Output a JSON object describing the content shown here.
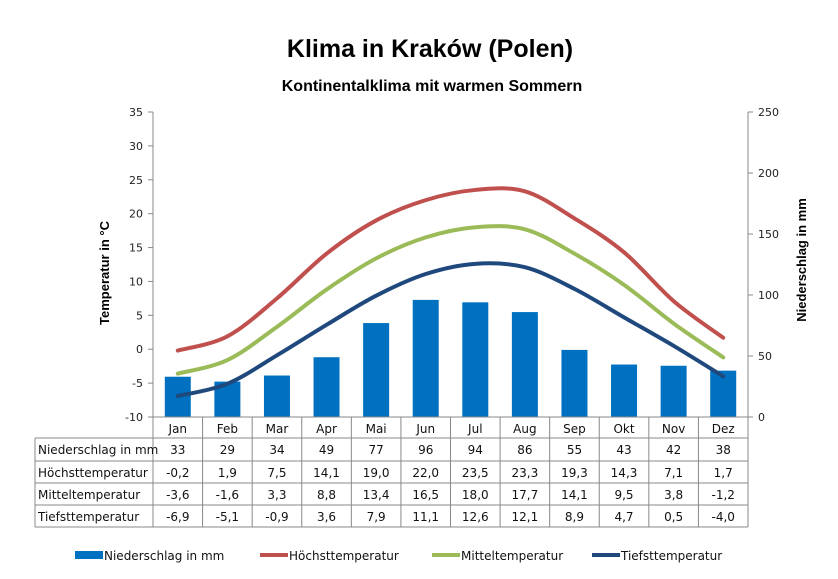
{
  "chart_data": {
    "type": "bar+line",
    "title": "Klima in Kraków (Polen)",
    "subtitle": "Kontinentalklima mit warmen Sommern",
    "ylabel_left": "Temperatur  in  °C",
    "ylabel_right": "Niederschlag  in  mm",
    "ylim_left": [
      -10,
      35
    ],
    "ylim_right": [
      0,
      250
    ],
    "yticks_left": [
      "35",
      "30",
      "25",
      "20",
      "15",
      "10",
      "5",
      "0",
      "-5",
      "-10"
    ],
    "yticks_right": [
      "250",
      "200",
      "150",
      "100",
      "50",
      "0"
    ],
    "categories": [
      "Jan",
      "Feb",
      "Mar",
      "Apr",
      "Mai",
      "Jun",
      "Jul",
      "Aug",
      "Sep",
      "Okt",
      "Nov",
      "Dez"
    ],
    "series": [
      {
        "name": "Niederschlag in mm",
        "type": "bar",
        "axis": "right",
        "color": "#0070C0",
        "values": [
          33,
          29,
          34,
          49,
          77,
          96,
          94,
          86,
          55,
          43,
          42,
          38
        ]
      },
      {
        "name": "Höchsttemperatur",
        "type": "line",
        "axis": "left",
        "color": "#C0504D",
        "values": [
          -0.2,
          1.9,
          7.5,
          14.1,
          19.0,
          22.0,
          23.5,
          23.3,
          19.3,
          14.3,
          7.1,
          1.7
        ]
      },
      {
        "name": "Mitteltemperatur",
        "type": "line",
        "axis": "left",
        "color": "#9BBB59",
        "values": [
          -3.6,
          -1.6,
          3.3,
          8.8,
          13.4,
          16.5,
          18.0,
          17.7,
          14.1,
          9.5,
          3.8,
          -1.2
        ]
      },
      {
        "name": "Tiefsttemperatur",
        "type": "line",
        "axis": "left",
        "color": "#1F497D",
        "values": [
          -6.9,
          -5.1,
          -0.9,
          3.6,
          7.9,
          11.1,
          12.6,
          12.1,
          8.9,
          4.7,
          0.5,
          -4.0
        ]
      }
    ],
    "table_rows": [
      {
        "label": "Niederschlag in mm",
        "cells": [
          "33",
          "29",
          "34",
          "49",
          "77",
          "96",
          "94",
          "86",
          "55",
          "43",
          "42",
          "38"
        ]
      },
      {
        "label": "Höchsttemperatur",
        "cells": [
          "-0,2",
          "1,9",
          "7,5",
          "14,1",
          "19,0",
          "22,0",
          "23,5",
          "23,3",
          "19,3",
          "14,3",
          "7,1",
          "1,7"
        ]
      },
      {
        "label": "Mitteltemperatur",
        "cells": [
          "-3,6",
          "-1,6",
          "3,3",
          "8,8",
          "13,4",
          "16,5",
          "18,0",
          "17,7",
          "14,1",
          "9,5",
          "3,8",
          "-1,2"
        ]
      },
      {
        "label": "Tiefsttemperatur",
        "cells": [
          "-6,9",
          "-5,1",
          "-0,9",
          "3,6",
          "7,9",
          "11,1",
          "12,6",
          "12,1",
          "8,9",
          "4,7",
          "0,5",
          "-4,0"
        ]
      }
    ],
    "legend": "bottom",
    "grid": false
  }
}
